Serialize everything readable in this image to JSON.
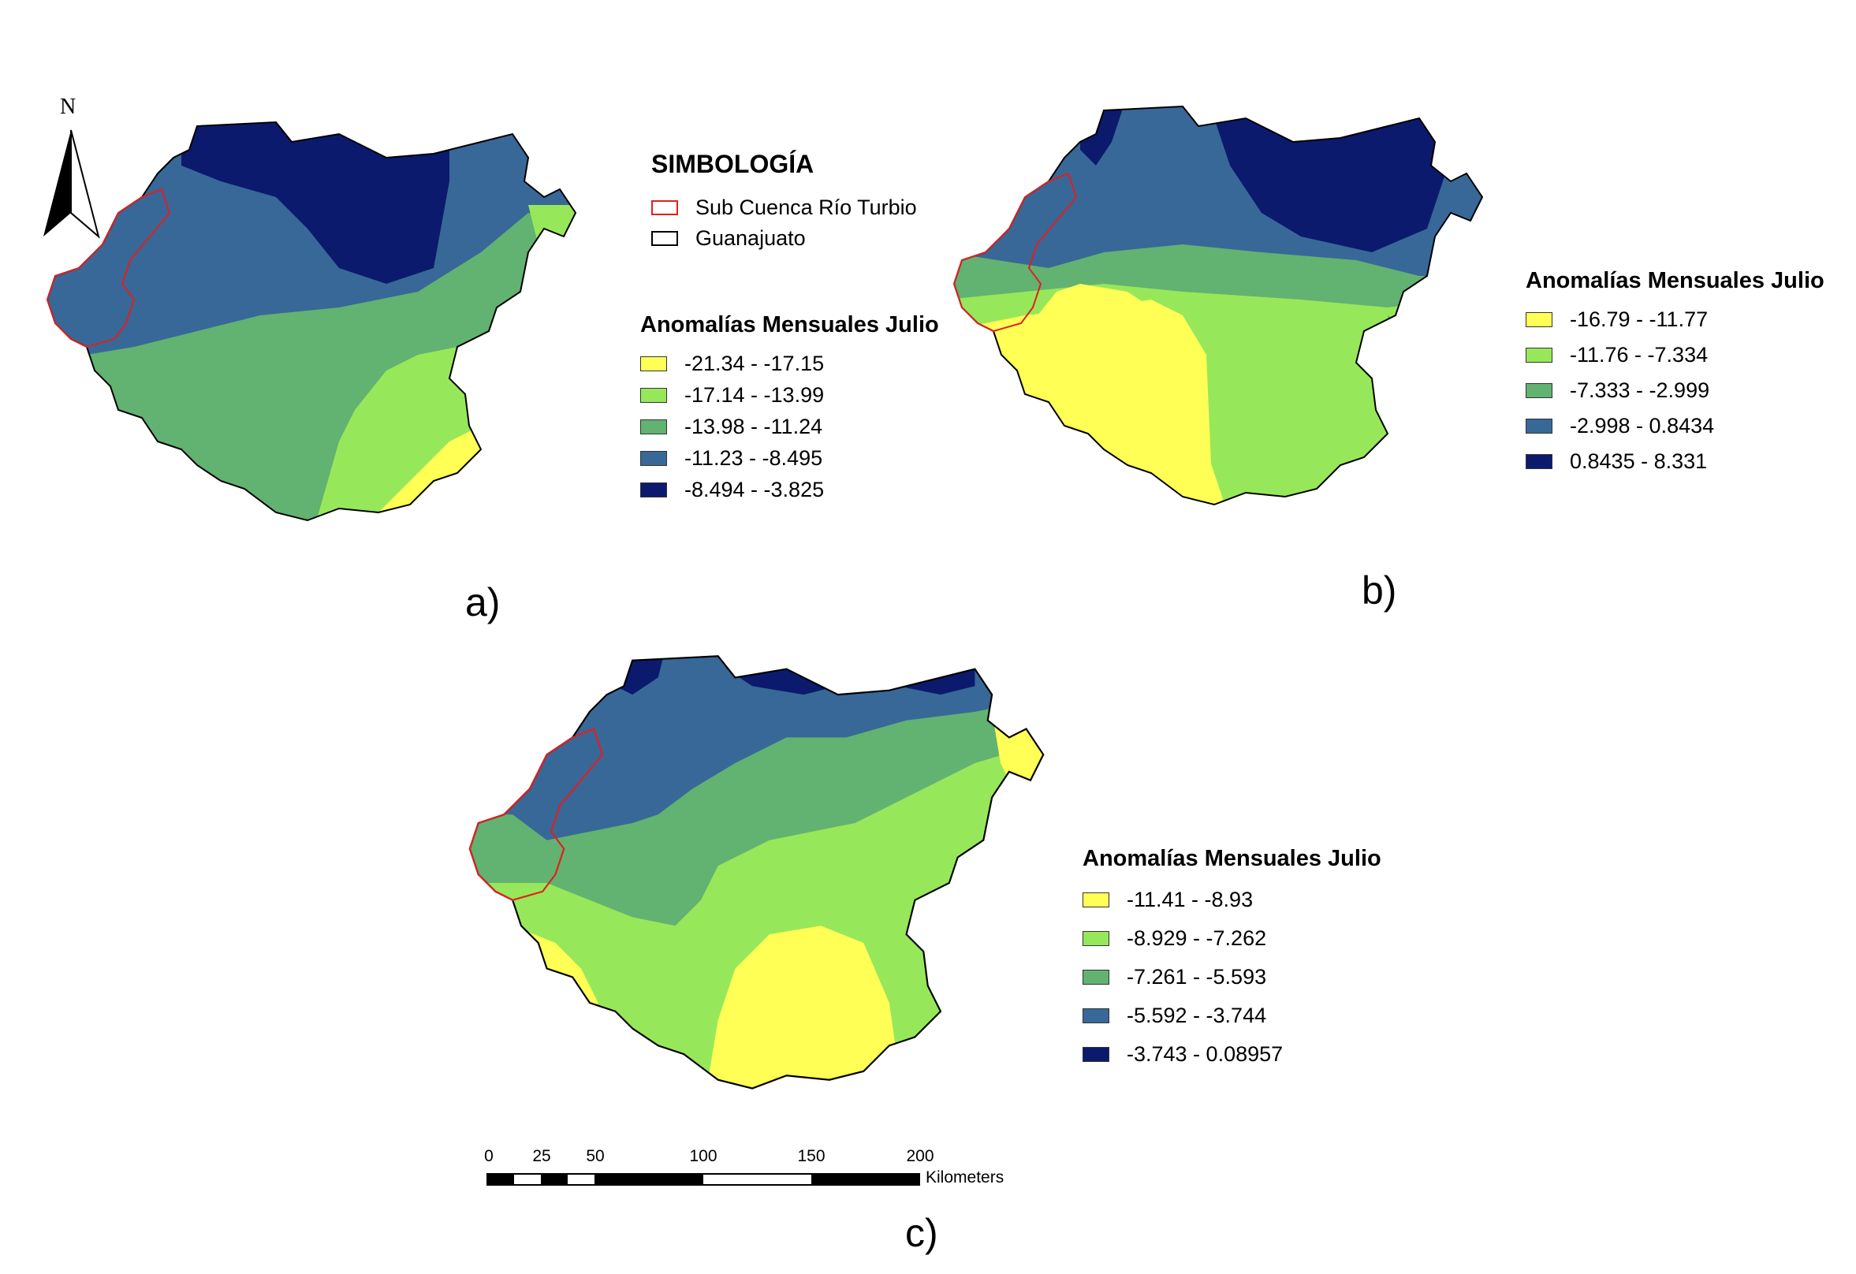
{
  "north_arrow": {
    "letter": "N"
  },
  "symbology": {
    "title": "SIMBOLOGÍA",
    "items": [
      {
        "label": "Sub Cuenca Río Turbio",
        "outline_color": "#e02020"
      },
      {
        "label": "Guanajuato",
        "outline_color": "#000000"
      }
    ]
  },
  "colors": {
    "class1": "#ffff55",
    "class2": "#96e85a",
    "class3": "#62b271",
    "class4": "#386898",
    "class5": "#0c1a6e",
    "subcuenca_outline": "#e02020",
    "state_outline": "#000000"
  },
  "panels": [
    {
      "label": "a)",
      "legend": {
        "title": "Anomalías Mensuales Julio",
        "classes": [
          {
            "label": "-21.34 - -17.15",
            "color": "#ffff55"
          },
          {
            "label": "-17.14 - -13.99",
            "color": "#96e85a"
          },
          {
            "label": "-13.98 - -11.24",
            "color": "#62b271"
          },
          {
            "label": "-11.23 - -8.495",
            "color": "#386898"
          },
          {
            "label": "-8.494 - -3.825",
            "color": "#0c1a6e"
          }
        ]
      }
    },
    {
      "label": "b)",
      "legend": {
        "title": "Anomalías Mensuales Julio",
        "classes": [
          {
            "label": "-16.79 - -11.77",
            "color": "#ffff55"
          },
          {
            "label": "-11.76 - -7.334",
            "color": "#96e85a"
          },
          {
            "label": "-7.333 - -2.999",
            "color": "#62b271"
          },
          {
            "label": "-2.998 - 0.8434",
            "color": "#386898"
          },
          {
            "label": "0.8435 - 8.331",
            "color": "#0c1a6e"
          }
        ]
      }
    },
    {
      "label": "c)",
      "legend": {
        "title": "Anomalías Mensuales Julio",
        "classes": [
          {
            "label": "-11.41 - -8.93",
            "color": "#ffff55"
          },
          {
            "label": "-8.929 - -7.262",
            "color": "#96e85a"
          },
          {
            "label": "-7.261 - -5.593",
            "color": "#62b271"
          },
          {
            "label": "-5.592 - -3.744",
            "color": "#386898"
          },
          {
            "label": "-3.743 - 0.08957",
            "color": "#0c1a6e"
          }
        ]
      }
    }
  ],
  "scale_bar": {
    "ticks": [
      "0",
      "25",
      "50",
      "100",
      "150",
      "200"
    ],
    "unit": "Kilometers"
  }
}
